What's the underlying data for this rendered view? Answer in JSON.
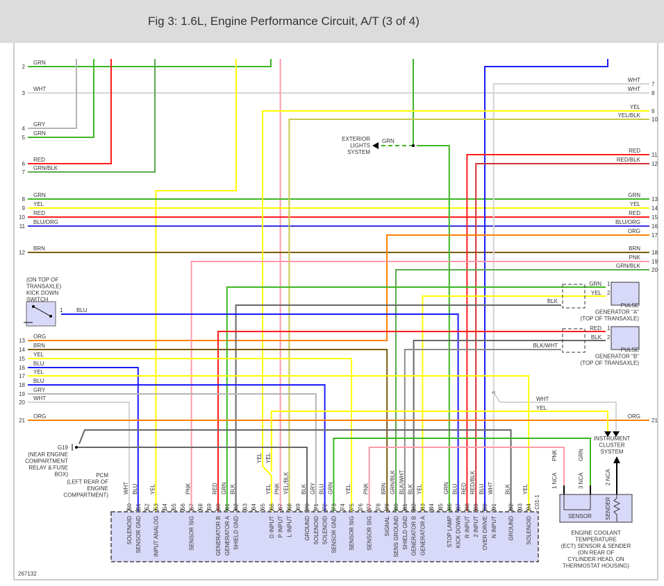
{
  "title": "Fig 3: 1.6L, Engine Performance Circuit, A/T (3 of 4)",
  "figure_id": "267132",
  "wire_colors": {
    "GRN": "#3cb521",
    "WHT": "#d4d4d4",
    "GRY": "#b4b4b4",
    "RED": "#ff1a1a",
    "YEL": "#ffff00",
    "BLU": "#1a1aff",
    "BRN": "#7a5a10",
    "ORG": "#ff8000",
    "PNK": "#ff99aa",
    "BLK": "#666666",
    "GRN/BLK": "#5aa84a",
    "YEL/BLK": "#c8c84a",
    "RED/BLK": "#d23030",
    "BLU/ORG": "#3030e0",
    "BLK/WHT": "#8a8a8a"
  },
  "left_rows": [
    {
      "num": "2",
      "label": "GRN"
    },
    {
      "num": "3",
      "label": "WHT"
    },
    {
      "num": "4",
      "label": "GRY"
    },
    {
      "num": "5",
      "label": "GRN"
    },
    {
      "num": "6",
      "label": "RED"
    },
    {
      "num": "7",
      "label": "GRN/BLK"
    },
    {
      "num": "8",
      "label": "GRN"
    },
    {
      "num": "9",
      "label": "YEL"
    },
    {
      "num": "10",
      "label": "RED"
    },
    {
      "num": "11",
      "label": "BLU/ORG"
    },
    {
      "num": "12",
      "label": "BRN"
    },
    {
      "num": "13",
      "label": "ORG"
    },
    {
      "num": "14",
      "label": "BRN"
    },
    {
      "num": "15",
      "label": "YEL"
    },
    {
      "num": "16",
      "label": "BLU"
    },
    {
      "num": "17",
      "label": "YEL"
    },
    {
      "num": "18",
      "label": "BLU"
    },
    {
      "num": "19",
      "label": "GRY"
    },
    {
      "num": "20",
      "label": "WHT"
    },
    {
      "num": "21",
      "label": "ORG"
    }
  ],
  "right_rows": [
    {
      "num": "7",
      "label": "WHT"
    },
    {
      "num": "8",
      "label": "WHT"
    },
    {
      "num": "9",
      "label": "YEL"
    },
    {
      "num": "10",
      "label": "YEL/BLK"
    },
    {
      "num": "11",
      "label": "RED"
    },
    {
      "num": "12",
      "label": "RED/BLK"
    },
    {
      "num": "13",
      "label": "GRN"
    },
    {
      "num": "14",
      "label": "YEL"
    },
    {
      "num": "15",
      "label": "RED"
    },
    {
      "num": "16",
      "label": "BLU/ORG"
    },
    {
      "num": "17",
      "label": "ORG"
    },
    {
      "num": "18",
      "label": "BRN"
    },
    {
      "num": "19",
      "label": "PNK"
    },
    {
      "num": "20",
      "label": "GRN/BLK"
    },
    {
      "num": "21",
      "label": "ORG"
    }
  ],
  "exterior_lights": {
    "label_lines": [
      "EXTERIOR",
      "LIGHTS",
      "SYSTEM"
    ],
    "wire": "GRN"
  },
  "kick_down_switch": {
    "label_lines": [
      "(ON TOP OF",
      "TRANSAXLE)",
      "KICK DOWN",
      "SWITCH"
    ],
    "pin": "1",
    "wire": "BLU"
  },
  "pulse_gen_a": {
    "label_lines": [
      "PULSE",
      "GENERATOR \"A\"",
      "(TOP OF TRANSAXLE)"
    ],
    "pin1": "1",
    "pin2": "2",
    "wire1": "GRN",
    "wire2": "YEL",
    "shield": "BLK"
  },
  "pulse_gen_b": {
    "label_lines": [
      "PULSE",
      "GENERATOR \"B\"",
      "(TOP OF TRANSAXLE)"
    ],
    "pin1": "1",
    "pin2": "2",
    "wire1": "RED",
    "wire2": "BLK",
    "shield": "BLK/WHT"
  },
  "instrument_cluster": {
    "label_lines": [
      "INSTRUMENT",
      "CLUSTER",
      "SYSTEM"
    ],
    "wire_wht": "WHT",
    "wire_yel": "YEL"
  },
  "ground": {
    "id": "G19",
    "label_lines": [
      "(NEAR ENGINE",
      "COMPARTMENT",
      "RELAY & FUSE",
      "BOX)"
    ]
  },
  "ect": {
    "label_lines": [
      "ENGINE COOLANT",
      "TEMPERATURE",
      "(ECT) SENSOR & SENDER",
      "(ON REAR OF",
      "CYLINDER HEAD, ON",
      "THERMOSTAT HOUSING)"
    ],
    "sensor": "SENSOR",
    "sender": "SENDER",
    "pins": [
      {
        "label": "1 NCA",
        "wire": "PNK"
      },
      {
        "label": "3 NCA",
        "wire": "GRN"
      },
      {
        "label": "2 NCA",
        "wire": ""
      }
    ]
  },
  "pcm": {
    "label_lines": [
      "PCM",
      "(LEFT REAR OF",
      "ENGINE",
      "COMPARTMENT)"
    ],
    "connector": "C01-1",
    "pins": [
      {
        "num": "50",
        "wire": "WHT",
        "func": "SOLENOID"
      },
      {
        "num": "51",
        "wire": "BLU",
        "func": "SENSOR GND"
      },
      {
        "num": "52",
        "wire": "",
        "func": ""
      },
      {
        "num": "53",
        "wire": "YEL",
        "func": "INPUT ANALOG"
      },
      {
        "num": "54",
        "wire": "",
        "func": ""
      },
      {
        "num": "55",
        "wire": "",
        "func": ""
      },
      {
        "num": "56",
        "wire": "",
        "func": ""
      },
      {
        "num": "57",
        "wire": "PNK",
        "func": "SENSOR SIG"
      },
      {
        "num": "58",
        "wire": "",
        "func": ""
      },
      {
        "num": "59",
        "wire": "",
        "func": ""
      },
      {
        "num": "60",
        "wire": "RED",
        "func": "GENERATOR B"
      },
      {
        "num": "61",
        "wire": "GRN",
        "func": "GENERATOR A"
      },
      {
        "num": "62",
        "wire": "BLK",
        "func": "SHIELD GND"
      },
      {
        "num": "63",
        "wire": "",
        "func": ""
      },
      {
        "num": "64",
        "wire": "",
        "func": ""
      },
      {
        "num": "65",
        "wire": "",
        "func": ""
      },
      {
        "num": "66",
        "wire": "YEL",
        "func": "D INPUT"
      },
      {
        "num": "67",
        "wire": "PNK",
        "func": "P INPUT"
      },
      {
        "num": "68",
        "wire": "YEL/BLK",
        "func": "L INPUT"
      },
      {
        "num": "69",
        "wire": "",
        "func": ""
      },
      {
        "num": "70",
        "wire": "BLK",
        "func": "GROUND"
      },
      {
        "num": "71",
        "wire": "GRY",
        "func": "SOLENOID"
      },
      {
        "num": "72",
        "wire": "BLU",
        "func": "SOLENOID"
      },
      {
        "num": "73",
        "wire": "GRN",
        "func": "SENSOR GND"
      },
      {
        "num": "74",
        "wire": "",
        "func": ""
      },
      {
        "num": "75",
        "wire": "YEL",
        "func": "SENSOR SIG"
      },
      {
        "num": "76",
        "wire": "",
        "func": ""
      },
      {
        "num": "77",
        "wire": "PNK",
        "func": "SENSOR SIG"
      },
      {
        "num": "78",
        "wire": "",
        "func": ""
      },
      {
        "num": "79",
        "wire": "BRN",
        "func": "SIGNAL"
      },
      {
        "num": "80",
        "wire": "GRN/BLK",
        "func": "SENS GROUND"
      },
      {
        "num": "81",
        "wire": "BLK/WHT",
        "func": "SHIELD GND"
      },
      {
        "num": "82",
        "wire": "BLK",
        "func": "GENERATOR B"
      },
      {
        "num": "83",
        "wire": "YEL",
        "func": "GENERATOR A"
      },
      {
        "num": "84",
        "wire": "",
        "func": ""
      },
      {
        "num": "85",
        "wire": "",
        "func": ""
      },
      {
        "num": "86",
        "wire": "GRN",
        "func": "STOP LAMP"
      },
      {
        "num": "87",
        "wire": "BLU",
        "func": "KICK DOWN"
      },
      {
        "num": "88",
        "wire": "RED",
        "func": "R INPUT"
      },
      {
        "num": "89",
        "wire": "RED/BLK",
        "func": "2 INPUT"
      },
      {
        "num": "90",
        "wire": "BLU",
        "func": "OVER DRIVE"
      },
      {
        "num": "91",
        "wire": "WHT",
        "func": "N INPUT"
      },
      {
        "num": "92",
        "wire": "BLK",
        "func": "GROUND"
      },
      {
        "num": "93",
        "wire": "",
        "func": ""
      },
      {
        "num": "94",
        "wire": "YEL",
        "func": "SOLENOID"
      }
    ]
  },
  "inline_labels": {
    "yel_a": "YEL",
    "yel_b": "YEL",
    "wht_ic": "WHT",
    "yel_ic": "YEL"
  }
}
